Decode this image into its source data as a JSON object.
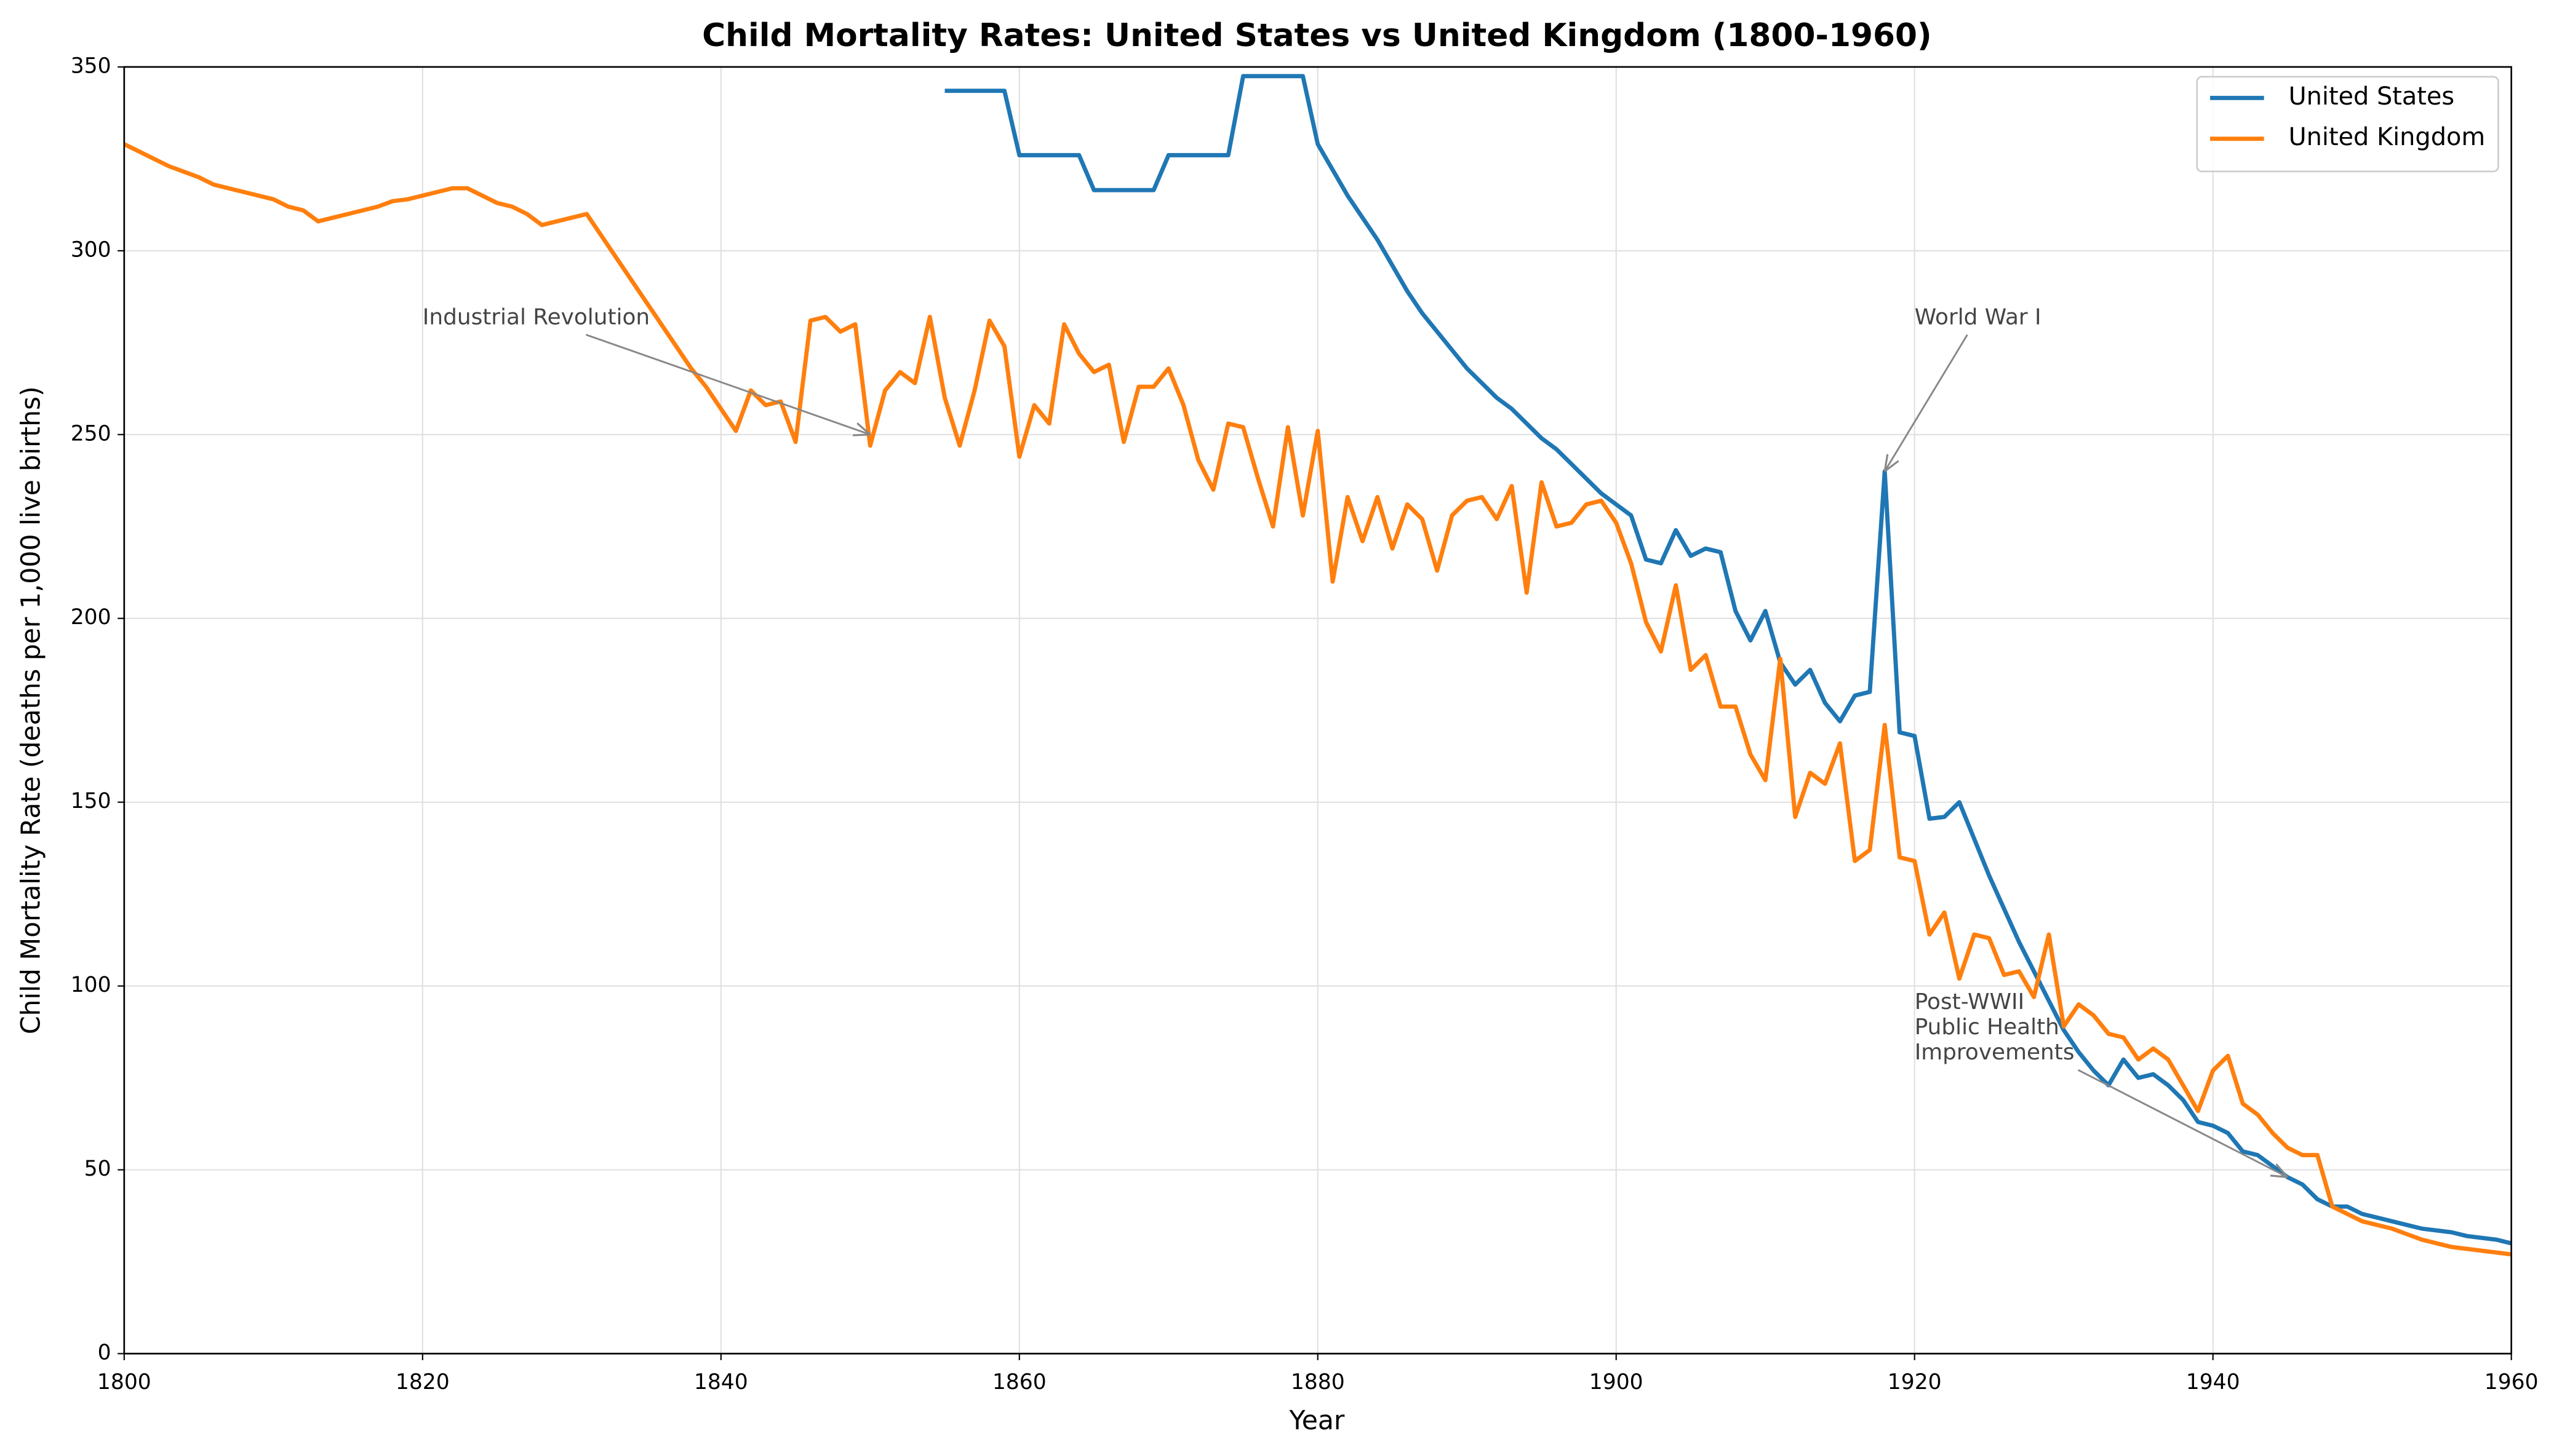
{
  "chart_data": {
    "type": "line",
    "title": "Child Mortality Rates: United States vs United Kingdom (1800-1960)",
    "xlabel": "Year",
    "ylabel": "Child Mortality Rate (deaths per 1,000 live births)",
    "x": [
      1800,
      1801,
      1802,
      1803,
      1804,
      1805,
      1806,
      1807,
      1808,
      1809,
      1810,
      1811,
      1812,
      1813,
      1814,
      1815,
      1816,
      1817,
      1818,
      1819,
      1820,
      1821,
      1822,
      1823,
      1824,
      1825,
      1826,
      1827,
      1828,
      1829,
      1830,
      1831,
      1832,
      1833,
      1834,
      1835,
      1836,
      1837,
      1838,
      1839,
      1840,
      1841,
      1842,
      1843,
      1844,
      1845,
      1846,
      1847,
      1848,
      1849,
      1850,
      1851,
      1852,
      1853,
      1854,
      1855,
      1856,
      1857,
      1858,
      1859,
      1860,
      1861,
      1862,
      1863,
      1864,
      1865,
      1866,
      1867,
      1868,
      1869,
      1870,
      1871,
      1872,
      1873,
      1874,
      1875,
      1876,
      1877,
      1878,
      1879,
      1880,
      1881,
      1882,
      1883,
      1884,
      1885,
      1886,
      1887,
      1888,
      1889,
      1890,
      1891,
      1892,
      1893,
      1894,
      1895,
      1896,
      1897,
      1898,
      1899,
      1900,
      1901,
      1902,
      1903,
      1904,
      1905,
      1906,
      1907,
      1908,
      1909,
      1910,
      1911,
      1912,
      1913,
      1914,
      1915,
      1916,
      1917,
      1918,
      1919,
      1920,
      1921,
      1922,
      1923,
      1924,
      1925,
      1926,
      1927,
      1928,
      1929,
      1930,
      1931,
      1932,
      1933,
      1934,
      1935,
      1936,
      1937,
      1938,
      1939,
      1940,
      1941,
      1942,
      1943,
      1944,
      1945,
      1946,
      1947,
      1948,
      1949,
      1950,
      1951,
      1952,
      1953,
      1954,
      1955,
      1956,
      1957,
      1958,
      1959,
      1960
    ],
    "series": [
      {
        "name": "United States",
        "color": "#1f77b4",
        "values": [
          null,
          null,
          null,
          null,
          null,
          null,
          null,
          null,
          null,
          null,
          null,
          null,
          null,
          null,
          null,
          null,
          null,
          null,
          null,
          null,
          null,
          null,
          null,
          null,
          null,
          null,
          null,
          null,
          null,
          null,
          null,
          null,
          null,
          null,
          null,
          null,
          null,
          null,
          null,
          null,
          null,
          null,
          null,
          null,
          null,
          null,
          null,
          null,
          null,
          null,
          null,
          null,
          null,
          null,
          null,
          343.5,
          343.5,
          343.5,
          343.5,
          343.5,
          326,
          326,
          326,
          326,
          326,
          316.5,
          316.5,
          316.5,
          316.5,
          316.5,
          326,
          326,
          326,
          326,
          326,
          347.5,
          347.5,
          347.5,
          347.5,
          347.5,
          329,
          322,
          315,
          309,
          303,
          296,
          289,
          283,
          278,
          273,
          268,
          264,
          260,
          257,
          253,
          249,
          246,
          242,
          238,
          234,
          231,
          228,
          216,
          215,
          224,
          217,
          219,
          218,
          202,
          194,
          202,
          188,
          182,
          186,
          177,
          172,
          179,
          180,
          240,
          169,
          168,
          145.5,
          146,
          150,
          140,
          130,
          121,
          112,
          104,
          96,
          88,
          82,
          77,
          73,
          80,
          75,
          76,
          73,
          69,
          63,
          62,
          60,
          55,
          54,
          51,
          48,
          46,
          42,
          40,
          40,
          38,
          37,
          36,
          35,
          34,
          33.5,
          33,
          32,
          31.5,
          31,
          30
        ]
      },
      {
        "name": "United Kingdom",
        "color": "#ff7f0e",
        "values": [
          329,
          327,
          325,
          323,
          321.5,
          320,
          318,
          317,
          316,
          315,
          314,
          312,
          311,
          308,
          309,
          310,
          311,
          312,
          313.5,
          314,
          315,
          316,
          317,
          317,
          315,
          313,
          312,
          310,
          307,
          308,
          309,
          310,
          304,
          298,
          292,
          286,
          280,
          274,
          268,
          263,
          257,
          251,
          262,
          258,
          259,
          248,
          281,
          282,
          278,
          280,
          247,
          262,
          267,
          264,
          282,
          260,
          247,
          262,
          281,
          274,
          244,
          258,
          253,
          280,
          272,
          267,
          269,
          248,
          263,
          263,
          268,
          258,
          243,
          235,
          253,
          252,
          238,
          225,
          252,
          228,
          251,
          210,
          233,
          221,
          233,
          219,
          231,
          227,
          213,
          228,
          232,
          233,
          227,
          236,
          207,
          237,
          225,
          226,
          231,
          232,
          226,
          215,
          199,
          191,
          209,
          186,
          190,
          176,
          176,
          163,
          156,
          189,
          146,
          158,
          155,
          166,
          134,
          137,
          171,
          135,
          134,
          114,
          120,
          102,
          114,
          113,
          103,
          104,
          97,
          114,
          89,
          95,
          92,
          87,
          86,
          80,
          83,
          80,
          73,
          66,
          77,
          81,
          68,
          65,
          60,
          56,
          54,
          54,
          40,
          38,
          36,
          35,
          34,
          32.5,
          31,
          30,
          29,
          28.5,
          28,
          27.5,
          27
        ]
      }
    ],
    "xlim": [
      1800,
      1960
    ],
    "ylim": [
      0,
      350
    ],
    "xticks": [
      1800,
      1820,
      1840,
      1860,
      1880,
      1900,
      1920,
      1940,
      1960
    ],
    "yticks": [
      0,
      50,
      100,
      150,
      200,
      250,
      300,
      350
    ],
    "grid": true,
    "legend": "upper right",
    "annotations": [
      {
        "text": [
          "Industrial Revolution"
        ],
        "xy": [
          1850,
          250
        ],
        "xytext": [
          1820,
          280
        ]
      },
      {
        "text": [
          "World War I"
        ],
        "xy": [
          1918,
          240
        ],
        "xytext": [
          1920,
          280
        ]
      },
      {
        "text": [
          "Post-WWII",
          "Public Health",
          "Improvements"
        ],
        "xy": [
          1945,
          48
        ],
        "xytext": [
          1920,
          80
        ]
      }
    ]
  }
}
